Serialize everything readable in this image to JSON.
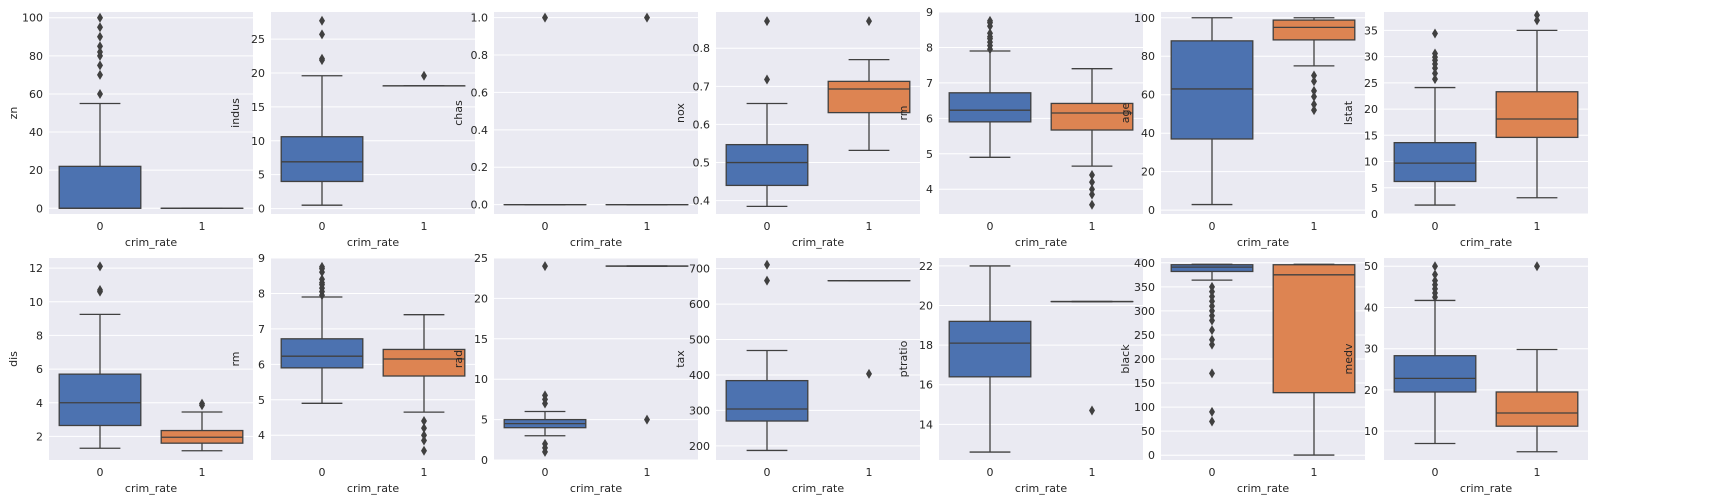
{
  "colors": {
    "group0": "#4c72b0",
    "group1": "#dd8452",
    "panel": "#eaeaf2",
    "line": "#404040"
  },
  "chart_data": [
    {
      "type": "box",
      "xlabel": "crim_rate",
      "ylabel": "zn",
      "categories": [
        "0",
        "1"
      ],
      "ylim": [
        -3,
        103
      ],
      "yticks": [
        0,
        20,
        40,
        60,
        80,
        100
      ],
      "boxes": [
        {
          "q1": 0,
          "median": 0,
          "q3": 22,
          "whislo": 0,
          "whishi": 55,
          "fliers": [
            60,
            70,
            75,
            80,
            82,
            85,
            90,
            95,
            100
          ]
        },
        {
          "q1": 0,
          "median": 0,
          "q3": 0,
          "whislo": 0,
          "whishi": 0,
          "fliers": []
        }
      ]
    },
    {
      "type": "box",
      "xlabel": "crim_rate",
      "ylabel": "indus",
      "categories": [
        "0",
        "1"
      ],
      "ylim": [
        -0.8,
        29
      ],
      "yticks": [
        0,
        5,
        10,
        15,
        20,
        25
      ],
      "boxes": [
        {
          "q1": 4,
          "median": 6.9,
          "q3": 10.6,
          "whislo": 0.5,
          "whishi": 19.6,
          "fliers": [
            21.9,
            22.1,
            25.7,
            27.7
          ]
        },
        {
          "q1": 18.1,
          "median": 18.1,
          "q3": 18.1,
          "whislo": 18.1,
          "whishi": 18.1,
          "fliers": [
            19.6
          ]
        }
      ]
    },
    {
      "type": "box",
      "xlabel": "crim_rate",
      "ylabel": "chas",
      "categories": [
        "0",
        "1"
      ],
      "ylim": [
        -0.05,
        1.03
      ],
      "yticks": [
        0.0,
        0.2,
        0.4,
        0.6,
        0.8,
        1.0
      ],
      "boxes": [
        {
          "q1": 0,
          "median": 0,
          "q3": 0,
          "whislo": 0,
          "whishi": 0,
          "fliers": [
            1
          ]
        },
        {
          "q1": 0,
          "median": 0,
          "q3": 0,
          "whislo": 0,
          "whishi": 0,
          "fliers": [
            1
          ]
        }
      ]
    },
    {
      "type": "box",
      "xlabel": "crim_rate",
      "ylabel": "nox",
      "categories": [
        "0",
        "1"
      ],
      "ylim": [
        0.365,
        0.895
      ],
      "yticks": [
        0.4,
        0.5,
        0.6,
        0.7,
        0.8
      ],
      "boxes": [
        {
          "q1": 0.44,
          "median": 0.5,
          "q3": 0.547,
          "whislo": 0.385,
          "whishi": 0.655,
          "fliers": [
            0.718,
            0.871
          ]
        },
        {
          "q1": 0.631,
          "median": 0.693,
          "q3": 0.713,
          "whislo": 0.532,
          "whishi": 0.77,
          "fliers": [
            0.871
          ]
        }
      ]
    },
    {
      "type": "box",
      "xlabel": "crim_rate",
      "ylabel": "rm",
      "categories": [
        "0",
        "1"
      ],
      "ylim": [
        3.3,
        9.0
      ],
      "yticks": [
        4,
        5,
        6,
        7,
        8,
        9
      ],
      "boxes": [
        {
          "q1": 5.9,
          "median": 6.23,
          "q3": 6.72,
          "whislo": 4.9,
          "whishi": 7.9,
          "fliers": [
            7.95,
            8.05,
            8.15,
            8.25,
            8.3,
            8.4,
            8.6,
            8.7,
            8.75
          ]
        },
        {
          "q1": 5.67,
          "median": 6.15,
          "q3": 6.42,
          "whislo": 4.65,
          "whishi": 7.4,
          "fliers": [
            4.4,
            4.2,
            4.0,
            3.85,
            3.56
          ]
        }
      ]
    },
    {
      "type": "box",
      "xlabel": "crim_rate",
      "ylabel": "age",
      "categories": [
        "0",
        "1"
      ],
      "ylim": [
        -2,
        103
      ],
      "yticks": [
        0,
        20,
        40,
        60,
        80,
        100
      ],
      "boxes": [
        {
          "q1": 37,
          "median": 63,
          "q3": 88,
          "whislo": 2.9,
          "whishi": 100,
          "fliers": []
        },
        {
          "q1": 88.5,
          "median": 95,
          "q3": 98.8,
          "whislo": 75,
          "whishi": 100,
          "fliers": [
            70,
            67,
            62,
            59,
            55,
            52
          ]
        }
      ]
    },
    {
      "type": "box",
      "xlabel": "crim_rate",
      "ylabel": "lstat",
      "categories": [
        "0",
        "1"
      ],
      "ylim": [
        0,
        38.5
      ],
      "yticks": [
        0,
        5,
        10,
        15,
        20,
        25,
        30,
        35
      ],
      "boxes": [
        {
          "q1": 6.2,
          "median": 9.7,
          "q3": 13.6,
          "whislo": 1.7,
          "whishi": 24.1,
          "fliers": [
            25.7,
            26.8,
            27.8,
            28.6,
            29.3,
            29.9,
            30.6,
            34.4
          ]
        },
        {
          "q1": 14.6,
          "median": 18.1,
          "q3": 23.3,
          "whislo": 3.1,
          "whishi": 35,
          "fliers": [
            36.9,
            37.9
          ]
        }
      ]
    },
    {
      "type": "box",
      "xlabel": "crim_rate",
      "ylabel": "dis",
      "categories": [
        "0",
        "1"
      ],
      "ylim": [
        0.6,
        12.6
      ],
      "yticks": [
        2,
        4,
        6,
        8,
        10,
        12
      ],
      "boxes": [
        {
          "q1": 2.65,
          "median": 4.0,
          "q3": 5.7,
          "whislo": 1.3,
          "whishi": 9.25,
          "fliers": [
            10.6,
            10.7,
            12.1
          ]
        },
        {
          "q1": 1.6,
          "median": 1.95,
          "q3": 2.35,
          "whislo": 1.15,
          "whishi": 3.45,
          "fliers": [
            3.85,
            3.95
          ]
        }
      ]
    },
    {
      "type": "box",
      "xlabel": "crim_rate",
      "ylabel": "rm",
      "categories": [
        "0",
        "1"
      ],
      "ylim": [
        3.3,
        9.0
      ],
      "yticks": [
        4,
        5,
        6,
        7,
        8,
        9
      ],
      "boxes": [
        {
          "q1": 5.9,
          "median": 6.23,
          "q3": 6.72,
          "whislo": 4.9,
          "whishi": 7.9,
          "fliers": [
            7.95,
            8.05,
            8.15,
            8.25,
            8.3,
            8.4,
            8.6,
            8.7,
            8.75
          ]
        },
        {
          "q1": 5.67,
          "median": 6.15,
          "q3": 6.42,
          "whislo": 4.65,
          "whishi": 7.4,
          "fliers": [
            4.4,
            4.2,
            4.0,
            3.85,
            3.56
          ]
        }
      ]
    },
    {
      "type": "box",
      "xlabel": "crim_rate",
      "ylabel": "rad",
      "categories": [
        "0",
        "1"
      ],
      "ylim": [
        0,
        25
      ],
      "yticks": [
        0,
        5,
        10,
        15,
        20,
        25
      ],
      "boxes": [
        {
          "q1": 4,
          "median": 4.5,
          "q3": 5,
          "whislo": 3,
          "whishi": 6,
          "fliers": [
            7,
            7.5,
            8,
            2,
            1.5,
            1,
            24
          ]
        },
        {
          "q1": 24,
          "median": 24,
          "q3": 24,
          "whislo": 24,
          "whishi": 24,
          "fliers": [
            5
          ]
        }
      ]
    },
    {
      "type": "box",
      "xlabel": "crim_rate",
      "ylabel": "tax",
      "categories": [
        "0",
        "1"
      ],
      "ylim": [
        160,
        730
      ],
      "yticks": [
        200,
        300,
        400,
        500,
        600,
        700
      ],
      "boxes": [
        {
          "q1": 270,
          "median": 304,
          "q3": 384,
          "whislo": 187,
          "whishi": 469,
          "fliers": [
            666,
            711
          ]
        },
        {
          "q1": 666,
          "median": 666,
          "q3": 666,
          "whislo": 666,
          "whishi": 666,
          "fliers": [
            403
          ]
        }
      ]
    },
    {
      "type": "box",
      "xlabel": "crim_rate",
      "ylabel": "ptratio",
      "categories": [
        "0",
        "1"
      ],
      "ylim": [
        12.2,
        22.4
      ],
      "yticks": [
        14,
        16,
        18,
        20,
        22
      ],
      "boxes": [
        {
          "q1": 16.4,
          "median": 18.1,
          "q3": 19.2,
          "whislo": 12.6,
          "whishi": 22,
          "fliers": []
        },
        {
          "q1": 20.2,
          "median": 20.2,
          "q3": 20.2,
          "whislo": 20.2,
          "whishi": 20.2,
          "fliers": [
            14.7
          ]
        }
      ]
    },
    {
      "type": "box",
      "xlabel": "crim_rate",
      "ylabel": "black",
      "categories": [
        "0",
        "1"
      ],
      "ylim": [
        -10,
        410
      ],
      "yticks": [
        0,
        50,
        100,
        150,
        200,
        250,
        300,
        350,
        400
      ],
      "boxes": [
        {
          "q1": 382,
          "median": 391,
          "q3": 396,
          "whislo": 364,
          "whishi": 397,
          "fliers": [
            350,
            340,
            330,
            320,
            310,
            300,
            290,
            280,
            260,
            240,
            230,
            170,
            90,
            70
          ]
        },
        {
          "q1": 130,
          "median": 375,
          "q3": 396,
          "whislo": 0.3,
          "whishi": 397,
          "fliers": []
        }
      ]
    },
    {
      "type": "box",
      "xlabel": "crim_rate",
      "ylabel": "medv",
      "categories": [
        "0",
        "1"
      ],
      "ylim": [
        3,
        52
      ],
      "yticks": [
        10,
        20,
        30,
        40,
        50
      ],
      "boxes": [
        {
          "q1": 19.5,
          "median": 22.8,
          "q3": 28.3,
          "whislo": 7,
          "whishi": 41.7,
          "fliers": [
            42.5,
            43.5,
            44.5,
            45.5,
            46.5,
            48,
            50
          ]
        },
        {
          "q1": 11.2,
          "median": 14.4,
          "q3": 19.5,
          "whislo": 5,
          "whishi": 29.8,
          "fliers": [
            50
          ]
        }
      ]
    }
  ]
}
